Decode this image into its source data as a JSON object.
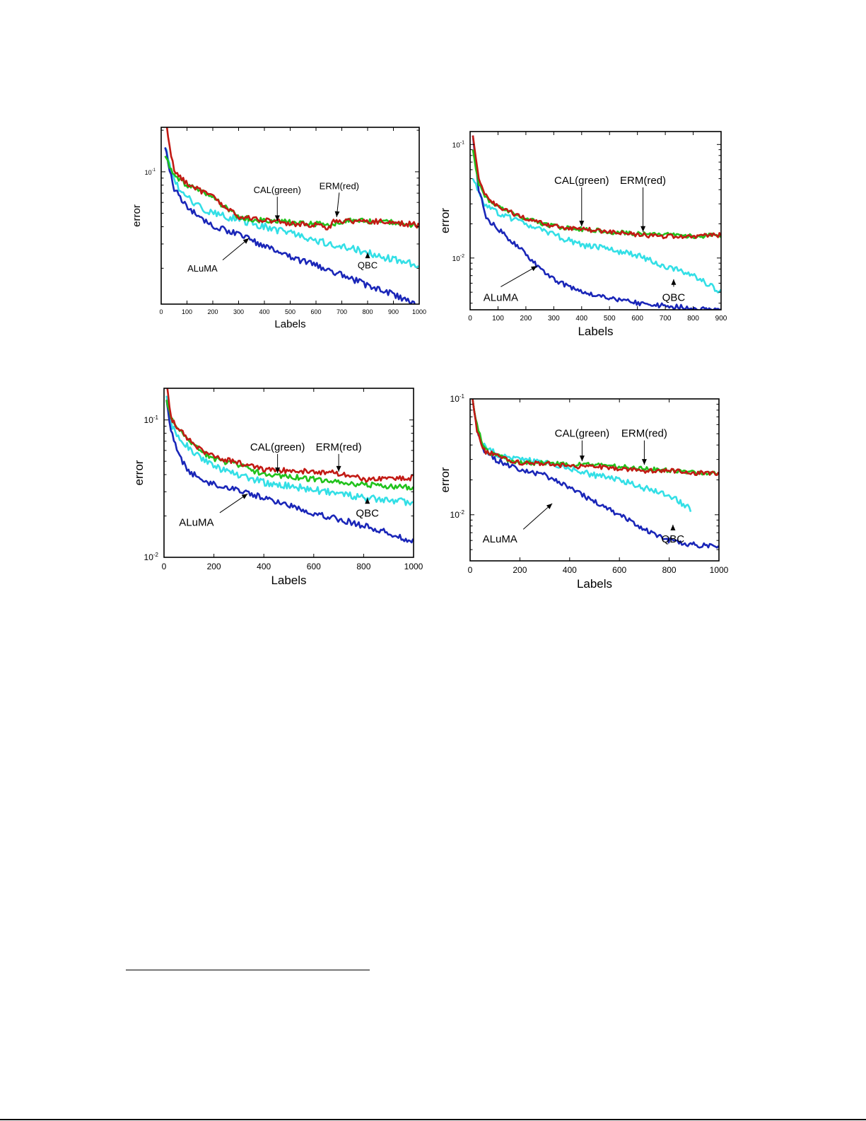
{
  "colors": {
    "CAL": "#21c21c",
    "ERM": "#c21a14",
    "QBC": "#33dfe6",
    "ALuMA": "#1a26b8"
  },
  "chart_data": [
    {
      "type": "line",
      "xlabel": "Labels",
      "ylabel": "error",
      "xlim": [
        0,
        1000
      ],
      "ylim": [
        0.011,
        0.21
      ],
      "yscale": "log",
      "xticks": [
        0,
        100,
        200,
        300,
        400,
        500,
        600,
        700,
        800,
        900,
        1000
      ],
      "yticks": [
        {
          "value": 0.1,
          "base": "10",
          "exp": "-1"
        }
      ],
      "grid": false,
      "series": [
        {
          "name": "CAL",
          "color_key": "CAL",
          "x": [
            15,
            50,
            100,
            150,
            200,
            250,
            300,
            400,
            500,
            600,
            650,
            700,
            800,
            900,
            1000
          ],
          "y": [
            0.13,
            0.093,
            0.08,
            0.072,
            0.065,
            0.055,
            0.047,
            0.044,
            0.043,
            0.042,
            0.041,
            0.044,
            0.044,
            0.043,
            0.041
          ]
        },
        {
          "name": "ERM",
          "color_key": "ERM",
          "x": [
            15,
            50,
            100,
            150,
            200,
            250,
            300,
            400,
            500,
            600,
            650,
            670,
            700,
            800,
            900,
            1000
          ],
          "y": [
            0.25,
            0.1,
            0.083,
            0.073,
            0.066,
            0.055,
            0.047,
            0.045,
            0.042,
            0.041,
            0.039,
            0.045,
            0.044,
            0.044,
            0.043,
            0.041
          ]
        },
        {
          "name": "QBC",
          "color_key": "QBC",
          "x": [
            15,
            50,
            100,
            150,
            200,
            300,
            400,
            500,
            600,
            700,
            800,
            900,
            1000
          ],
          "y": [
            0.15,
            0.085,
            0.065,
            0.056,
            0.05,
            0.045,
            0.04,
            0.036,
            0.032,
            0.029,
            0.026,
            0.023,
            0.021
          ]
        },
        {
          "name": "ALuMA",
          "color_key": "ALuMA",
          "x": [
            15,
            50,
            100,
            150,
            200,
            300,
            400,
            500,
            600,
            700,
            800,
            900,
            1000
          ],
          "y": [
            0.15,
            0.075,
            0.055,
            0.047,
            0.041,
            0.035,
            0.029,
            0.024,
            0.021,
            0.018,
            0.015,
            0.013,
            0.0105
          ]
        }
      ],
      "annotations": [
        {
          "text": "CAL(green)",
          "x": 450,
          "y": 0.07,
          "arrow_to": [
            450,
            0.044
          ]
        },
        {
          "text": "ERM(red)",
          "x": 690,
          "y": 0.075,
          "arrow_to": [
            680,
            0.047
          ]
        },
        {
          "text": "QBC",
          "x": 800,
          "y": 0.021,
          "arrow_to": [
            800,
            0.026
          ]
        },
        {
          "text": "ALuMA",
          "x": 160,
          "y": 0.02,
          "arrow_to": [
            340,
            0.033
          ]
        }
      ]
    },
    {
      "type": "line",
      "xlabel": "Labels",
      "ylabel": "error",
      "xlim": [
        0,
        900
      ],
      "ylim": [
        0.0035,
        0.13
      ],
      "yscale": "log",
      "xticks": [
        0,
        100,
        200,
        300,
        400,
        500,
        600,
        700,
        800,
        900
      ],
      "yticks": [
        {
          "value": 0.1,
          "base": "10",
          "exp": "-1"
        },
        {
          "value": 0.01,
          "base": "10",
          "exp": "-2"
        }
      ],
      "grid": false,
      "series": [
        {
          "name": "CAL",
          "color_key": "CAL",
          "x": [
            10,
            30,
            60,
            100,
            150,
            200,
            300,
            400,
            500,
            600,
            700,
            800,
            900
          ],
          "y": [
            0.09,
            0.045,
            0.033,
            0.028,
            0.025,
            0.022,
            0.019,
            0.018,
            0.017,
            0.0165,
            0.016,
            0.0155,
            0.016
          ]
        },
        {
          "name": "ERM",
          "color_key": "ERM",
          "x": [
            10,
            30,
            60,
            100,
            150,
            200,
            300,
            400,
            500,
            600,
            700,
            800,
            900
          ],
          "y": [
            0.12,
            0.05,
            0.034,
            0.028,
            0.025,
            0.022,
            0.019,
            0.018,
            0.017,
            0.016,
            0.0155,
            0.0155,
            0.016
          ]
        },
        {
          "name": "QBC",
          "color_key": "QBC",
          "x": [
            10,
            50,
            100,
            150,
            200,
            300,
            400,
            500,
            600,
            700,
            800,
            900
          ],
          "y": [
            0.05,
            0.03,
            0.025,
            0.022,
            0.02,
            0.016,
            0.013,
            0.012,
            0.0105,
            0.0085,
            0.007,
            0.005
          ]
        },
        {
          "name": "ALuMA",
          "color_key": "ALuMA",
          "x": [
            10,
            30,
            60,
            100,
            150,
            200,
            250,
            300,
            400,
            500,
            600,
            700,
            800,
            900
          ],
          "y": [
            0.12,
            0.04,
            0.022,
            0.018,
            0.014,
            0.011,
            0.008,
            0.0065,
            0.005,
            0.0045,
            0.004,
            0.0038,
            0.0036,
            0.0036
          ]
        }
      ],
      "annotations": [
        {
          "text": "CAL(green)",
          "x": 400,
          "y": 0.045,
          "arrow_to": [
            400,
            0.019
          ]
        },
        {
          "text": "ERM(red)",
          "x": 620,
          "y": 0.045,
          "arrow_to": [
            620,
            0.017
          ]
        },
        {
          "text": "QBC",
          "x": 730,
          "y": 0.0045,
          "arrow_to": [
            730,
            0.0065
          ]
        },
        {
          "text": "ALuMA",
          "x": 110,
          "y": 0.0045,
          "arrow_to": [
            240,
            0.0085
          ]
        }
      ]
    },
    {
      "type": "line",
      "xlabel": "Labels",
      "ylabel": "error",
      "xlim": [
        0,
        1000
      ],
      "ylim": [
        0.01,
        0.17
      ],
      "yscale": "log",
      "xticks": [
        0,
        200,
        400,
        600,
        800,
        1000
      ],
      "yticks": [
        {
          "value": 0.1,
          "base": "10",
          "exp": "-1"
        },
        {
          "value": 0.01,
          "base": "10",
          "exp": "-2"
        }
      ],
      "grid": false,
      "series": [
        {
          "name": "CAL",
          "color_key": "CAL",
          "x": [
            10,
            30,
            60,
            100,
            150,
            200,
            300,
            400,
            500,
            600,
            700,
            800,
            900,
            1000
          ],
          "y": [
            0.14,
            0.1,
            0.085,
            0.07,
            0.058,
            0.052,
            0.047,
            0.04,
            0.039,
            0.037,
            0.035,
            0.034,
            0.033,
            0.032
          ]
        },
        {
          "name": "ERM",
          "color_key": "ERM",
          "x": [
            10,
            30,
            60,
            100,
            150,
            200,
            300,
            400,
            500,
            600,
            700,
            800,
            900,
            1000
          ],
          "y": [
            0.19,
            0.1,
            0.085,
            0.072,
            0.06,
            0.054,
            0.049,
            0.043,
            0.043,
            0.042,
            0.041,
            0.037,
            0.037,
            0.038
          ]
        },
        {
          "name": "QBC",
          "color_key": "QBC",
          "x": [
            10,
            30,
            60,
            100,
            150,
            200,
            300,
            400,
            500,
            600,
            700,
            800,
            900,
            1000
          ],
          "y": [
            0.15,
            0.09,
            0.075,
            0.063,
            0.052,
            0.046,
            0.04,
            0.035,
            0.033,
            0.031,
            0.029,
            0.027,
            0.026,
            0.025
          ]
        },
        {
          "name": "ALuMA",
          "color_key": "ALuMA",
          "x": [
            10,
            30,
            60,
            100,
            150,
            200,
            300,
            400,
            500,
            600,
            700,
            800,
            900,
            1000
          ],
          "y": [
            0.14,
            0.08,
            0.055,
            0.042,
            0.037,
            0.034,
            0.031,
            0.027,
            0.024,
            0.021,
            0.019,
            0.017,
            0.015,
            0.013
          ]
        }
      ],
      "annotations": [
        {
          "text": "CAL(green)",
          "x": 455,
          "y": 0.06,
          "arrow_to": [
            455,
            0.041
          ]
        },
        {
          "text": "ERM(red)",
          "x": 700,
          "y": 0.06,
          "arrow_to": [
            700,
            0.042
          ]
        },
        {
          "text": "QBC",
          "x": 815,
          "y": 0.021,
          "arrow_to": [
            815,
            0.027
          ]
        },
        {
          "text": "ALuMA",
          "x": 130,
          "y": 0.018,
          "arrow_to": [
            335,
            0.029
          ]
        }
      ]
    },
    {
      "type": "line",
      "xlabel": "Labels",
      "ylabel": "error",
      "xlim": [
        0,
        1000
      ],
      "ylim": [
        0.004,
        0.1
      ],
      "yscale": "log",
      "xticks": [
        0,
        200,
        400,
        600,
        800,
        1000
      ],
      "yticks": [
        {
          "value": 0.1,
          "base": "10",
          "exp": "-1"
        },
        {
          "value": 0.01,
          "base": "10",
          "exp": "-2"
        }
      ],
      "grid": false,
      "series": [
        {
          "name": "CAL",
          "color_key": "CAL",
          "x": [
            10,
            30,
            60,
            100,
            150,
            200,
            300,
            400,
            500,
            600,
            700,
            800,
            900,
            1000
          ],
          "y": [
            0.1,
            0.055,
            0.036,
            0.033,
            0.03,
            0.028,
            0.028,
            0.027,
            0.027,
            0.026,
            0.025,
            0.024,
            0.023,
            0.023
          ]
        },
        {
          "name": "ERM",
          "color_key": "ERM",
          "x": [
            10,
            30,
            60,
            100,
            150,
            200,
            300,
            400,
            500,
            600,
            700,
            800,
            900,
            1000
          ],
          "y": [
            0.1,
            0.05,
            0.035,
            0.033,
            0.03,
            0.028,
            0.028,
            0.026,
            0.026,
            0.025,
            0.024,
            0.024,
            0.023,
            0.023
          ]
        },
        {
          "name": "QBC",
          "color_key": "QBC",
          "x": [
            10,
            30,
            60,
            100,
            150,
            200,
            300,
            400,
            500,
            600,
            700,
            800,
            890
          ],
          "y": [
            0.1,
            0.05,
            0.038,
            0.034,
            0.031,
            0.03,
            0.028,
            0.025,
            0.022,
            0.02,
            0.017,
            0.015,
            0.011
          ]
        },
        {
          "name": "ALuMA",
          "color_key": "ALuMA",
          "x": [
            10,
            30,
            60,
            100,
            150,
            200,
            300,
            400,
            500,
            600,
            700,
            800,
            900,
            1000
          ],
          "y": [
            0.1,
            0.05,
            0.035,
            0.03,
            0.027,
            0.024,
            0.022,
            0.017,
            0.013,
            0.01,
            0.0075,
            0.006,
            0.0055,
            0.0053
          ]
        }
      ],
      "annotations": [
        {
          "text": "CAL(green)",
          "x": 450,
          "y": 0.047,
          "arrow_to": [
            450,
            0.029
          ]
        },
        {
          "text": "ERM(red)",
          "x": 700,
          "y": 0.047,
          "arrow_to": [
            700,
            0.027
          ]
        },
        {
          "text": "QBC",
          "x": 815,
          "y": 0.0062,
          "arrow_to": [
            815,
            0.0082
          ]
        },
        {
          "text": "ALuMA",
          "x": 120,
          "y": 0.0062,
          "arrow_to": [
            330,
            0.0125
          ]
        }
      ]
    }
  ]
}
